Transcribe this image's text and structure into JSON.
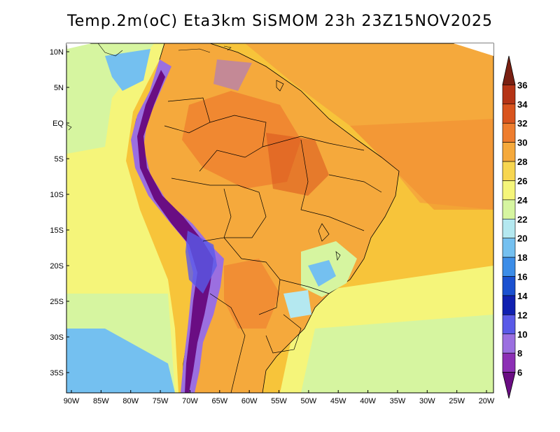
{
  "title": "Temp.2m(oC) Eta3km SiSMOM 23h 23Z15NOV2025",
  "lat_labels": [
    "10N",
    "5N",
    "EQ",
    "5S",
    "10S",
    "15S",
    "20S",
    "25S",
    "30S",
    "35S"
  ],
  "lon_labels": [
    "90W",
    "85W",
    "80W",
    "75W",
    "70W",
    "65W",
    "60W",
    "55W",
    "50W",
    "45W",
    "40W",
    "35W",
    "30W",
    "25W",
    "20W"
  ],
  "colorbar": {
    "labels": [
      "6",
      "8",
      "10",
      "12",
      "14",
      "16",
      "18",
      "20",
      "22",
      "24",
      "26",
      "28",
      "30",
      "32",
      "34",
      "36"
    ],
    "colors": [
      "#6a0d83",
      "#8c2fb5",
      "#9b6fe0",
      "#5a5ae8",
      "#1020b0",
      "#1a50d0",
      "#3c8de8",
      "#74c0f0",
      "#b4e8f0",
      "#d6f5a0",
      "#f5f57a",
      "#f7d650",
      "#f5a93c",
      "#ee7d2e",
      "#d9541e",
      "#b53416",
      "#7a2012"
    ],
    "units": "oC"
  },
  "map_colors": {
    "ocean_warm": "#f7c43a",
    "ocean_tropical": "#f5a93c",
    "ocean_cool": "#d6f5a0",
    "ocean_cold": "#74c0f0",
    "land_hot": "#ee7d2e",
    "land_warm": "#f5a93c",
    "highland": "#9b6fe0",
    "andes": "#6a0d83",
    "border": "#000000"
  }
}
